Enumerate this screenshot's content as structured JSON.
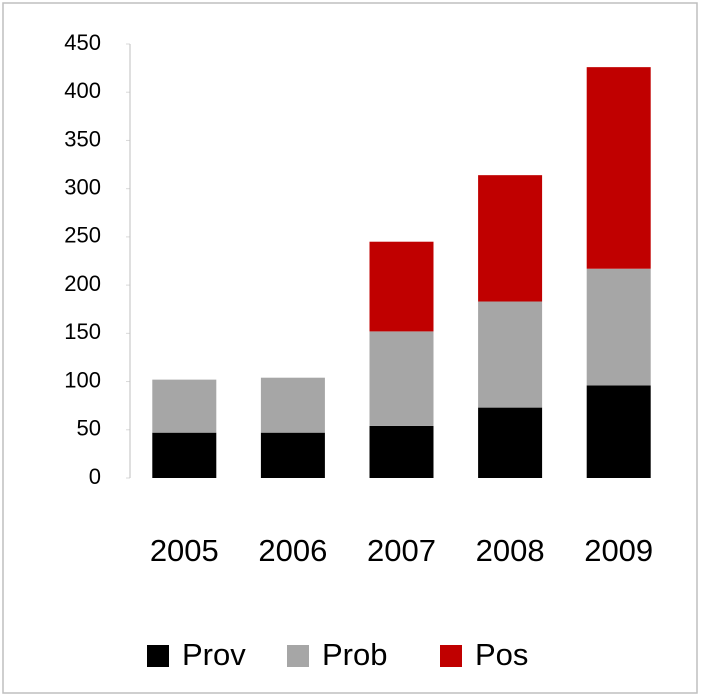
{
  "chart_data": {
    "type": "stacked_bar",
    "categories": [
      "2005",
      "2006",
      "2007",
      "2008",
      "2009"
    ],
    "series": [
      {
        "name": "Prov",
        "color": "#000000",
        "values": [
          47,
          47,
          54,
          73,
          96
        ]
      },
      {
        "name": "Prob",
        "color": "#a6a6a6",
        "values": [
          55,
          57,
          98,
          110,
          121
        ]
      },
      {
        "name": "Pos",
        "color": "#c00000",
        "values": [
          0,
          0,
          93,
          131,
          209
        ]
      }
    ],
    "ylim": [
      0,
      450
    ],
    "yticks": [
      0,
      50,
      100,
      150,
      200,
      250,
      300,
      350,
      400,
      450
    ],
    "legend": "bottom"
  }
}
